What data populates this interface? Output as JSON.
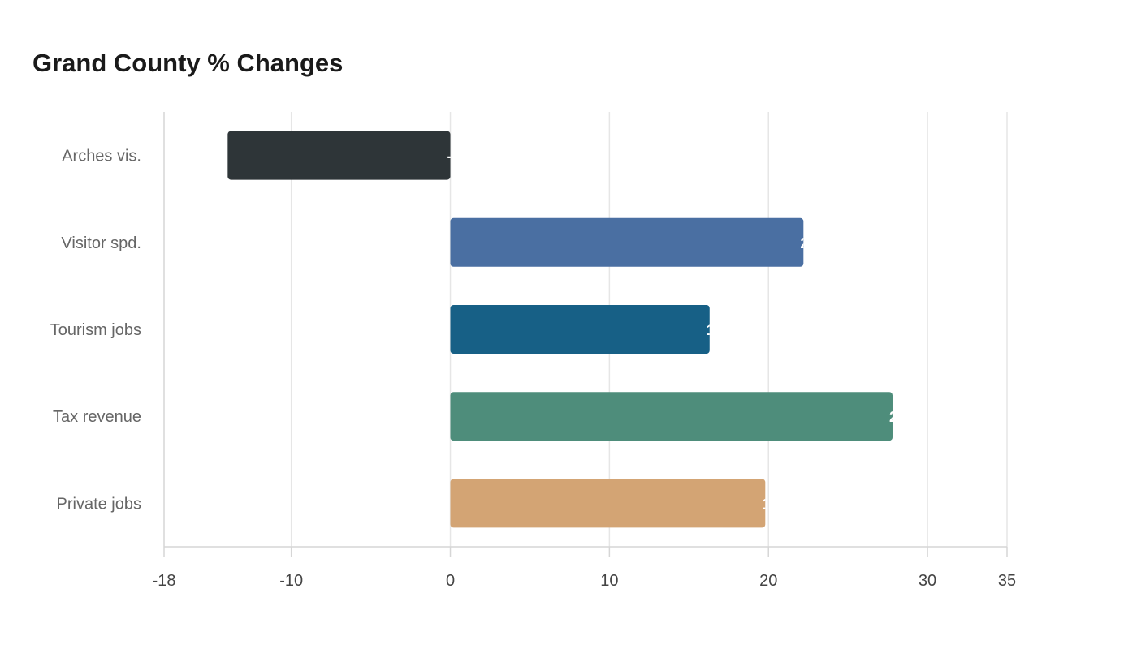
{
  "chart_data": {
    "type": "bar",
    "orientation": "horizontal",
    "title": "Grand County % Changes",
    "xlabel": "",
    "ylabel": "",
    "categories": [
      "Arches vis.",
      "Visitor spd.",
      "Tourism jobs",
      "Tax revenue",
      "Private jobs"
    ],
    "values": [
      -14.0,
      22.2,
      16.3,
      27.8,
      19.8
    ],
    "colors": [
      "#2e3538",
      "#4a6fa2",
      "#176086",
      "#4e8d7b",
      "#d3a474"
    ],
    "xlim": [
      -18,
      35
    ],
    "xticks": [
      -18,
      -10,
      0,
      10,
      20,
      30,
      35
    ],
    "grid": true,
    "legend": "none"
  }
}
